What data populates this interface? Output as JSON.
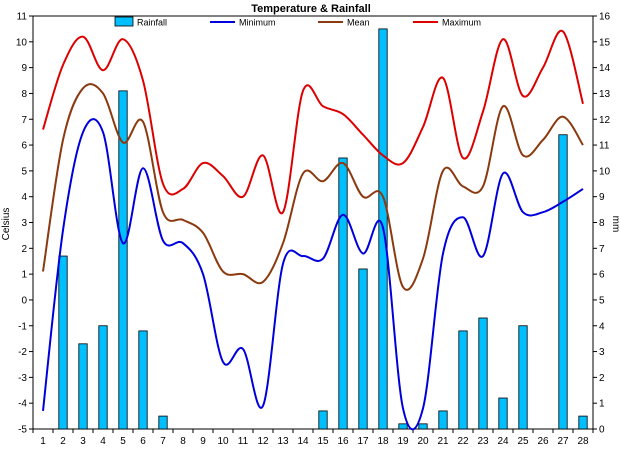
{
  "chart_data": {
    "type": "bar+line",
    "title": "Temperature & Rainfall",
    "ylabel_left": "Celsius",
    "ylabel_right": "mm",
    "x": [
      1,
      2,
      3,
      4,
      5,
      6,
      7,
      8,
      9,
      10,
      11,
      12,
      13,
      14,
      15,
      16,
      17,
      18,
      19,
      20,
      21,
      22,
      23,
      24,
      25,
      26,
      27,
      28
    ],
    "ylim_left": [
      -5,
      11
    ],
    "ylim_right": [
      0,
      16
    ],
    "left_ticks": [
      -5,
      -4,
      -3,
      -2,
      -1,
      0,
      1,
      2,
      3,
      4,
      5,
      6,
      7,
      8,
      9,
      10,
      11
    ],
    "right_ticks": [
      0,
      1,
      2,
      3,
      4,
      5,
      6,
      7,
      8,
      9,
      10,
      11,
      12,
      13,
      14,
      15,
      16
    ],
    "grid": false,
    "legend_position": "top",
    "rainfall": {
      "name": "Rainfall",
      "axis": "right",
      "color": "#00bfff",
      "values": [
        0,
        6.7,
        3.3,
        4.0,
        13.1,
        3.8,
        0.5,
        0,
        0,
        0,
        0,
        0,
        0,
        0,
        0.7,
        10.5,
        6.2,
        15.5,
        0.2,
        0.2,
        0.7,
        3.8,
        4.3,
        1.2,
        4.0,
        0,
        11.4,
        0.5
      ]
    },
    "series": [
      {
        "name": "Minimum",
        "color": "#0000dd",
        "values": [
          -4.3,
          2.7,
          6.5,
          6.5,
          2.2,
          5.1,
          2.3,
          2.2,
          1.0,
          -2.4,
          -1.9,
          -4.1,
          1.4,
          1.7,
          1.6,
          3.3,
          1.8,
          2.8,
          -4.2,
          -4.2,
          1.8,
          3.2,
          1.7,
          4.9,
          3.4,
          3.4,
          3.8,
          4.3
        ]
      },
      {
        "name": "Mean",
        "color": "#8b3a0f",
        "values": [
          1.1,
          6.2,
          8.2,
          8.0,
          6.1,
          6.9,
          3.4,
          3.1,
          2.6,
          1.1,
          1.0,
          0.7,
          2.2,
          4.9,
          4.6,
          5.3,
          4.0,
          4.0,
          0.5,
          1.6,
          5.0,
          4.4,
          4.4,
          7.5,
          5.6,
          6.2,
          7.1,
          6.0
        ]
      },
      {
        "name": "Maximum",
        "color": "#dd0000",
        "values": [
          6.6,
          9.1,
          10.2,
          8.9,
          10.1,
          8.5,
          4.5,
          4.3,
          5.3,
          4.8,
          4.0,
          5.6,
          3.4,
          8.1,
          7.5,
          7.2,
          6.4,
          5.6,
          5.3,
          6.7,
          8.6,
          5.5,
          7.3,
          10.1,
          7.9,
          9.0,
          10.4,
          7.6
        ]
      }
    ]
  }
}
